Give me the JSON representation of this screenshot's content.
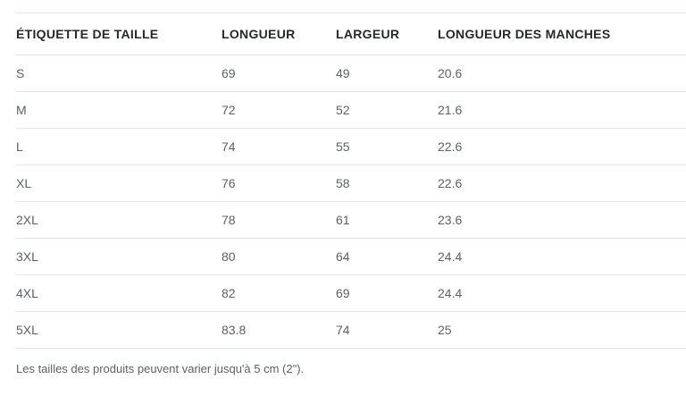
{
  "table": {
    "columns": [
      "ÉTIQUETTE DE TAILLE",
      "LONGUEUR",
      "LARGEUR",
      "LONGUEUR DES MANCHES"
    ],
    "rows": [
      [
        "S",
        "69",
        "49",
        "20.6"
      ],
      [
        "M",
        "72",
        "52",
        "21.6"
      ],
      [
        "L",
        "74",
        "55",
        "22.6"
      ],
      [
        "XL",
        "76",
        "58",
        "22.6"
      ],
      [
        "2XL",
        "78",
        "61",
        "23.6"
      ],
      [
        "3XL",
        "80",
        "64",
        "24.4"
      ],
      [
        "4XL",
        "82",
        "69",
        "24.4"
      ],
      [
        "5XL",
        "83.8",
        "74",
        "25"
      ]
    ]
  },
  "footer": {
    "note": "Les tailles des produits peuvent varier jusqu'à 5 cm (2\")."
  },
  "colors": {
    "header_text": "#26282b",
    "body_text": "#5c6166",
    "divider": "#e4e5e7",
    "background": "#ffffff"
  }
}
